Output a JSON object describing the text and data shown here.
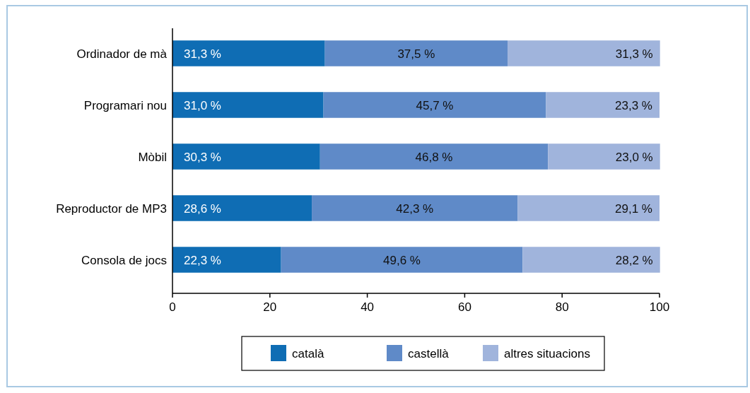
{
  "chart_data": {
    "type": "bar",
    "orientation": "horizontal",
    "stacked": true,
    "categories": [
      "Ordinador de mà",
      "Programari nou",
      "Mòbil",
      "Reproductor de MP3",
      "Consola de jocs"
    ],
    "series": [
      {
        "name": "català",
        "color": "#0f6db4",
        "values": [
          31.3,
          31.0,
          30.3,
          28.6,
          22.3
        ],
        "value_labels": [
          "31,3 %",
          "31,0 %",
          "30,3 %",
          "28,6 %",
          "22,3 %"
        ]
      },
      {
        "name": "castellà",
        "color": "#5f8ac8",
        "values": [
          37.5,
          45.7,
          46.8,
          42.3,
          49.6
        ],
        "value_labels": [
          "37,5 %",
          "45,7 %",
          "46,8 %",
          "42,3 %",
          "49,6 %"
        ]
      },
      {
        "name": "altres situacions",
        "color": "#a0b4dc",
        "values": [
          31.3,
          23.3,
          23.0,
          29.1,
          28.2
        ],
        "value_labels": [
          "31,3 %",
          "23,3 %",
          "23,0 %",
          "29,1 %",
          "28,2 %"
        ]
      }
    ],
    "xlim": [
      0,
      100
    ],
    "xticks": [
      0,
      20,
      40,
      60,
      80,
      100
    ],
    "grid": false,
    "legend": "bottom"
  }
}
